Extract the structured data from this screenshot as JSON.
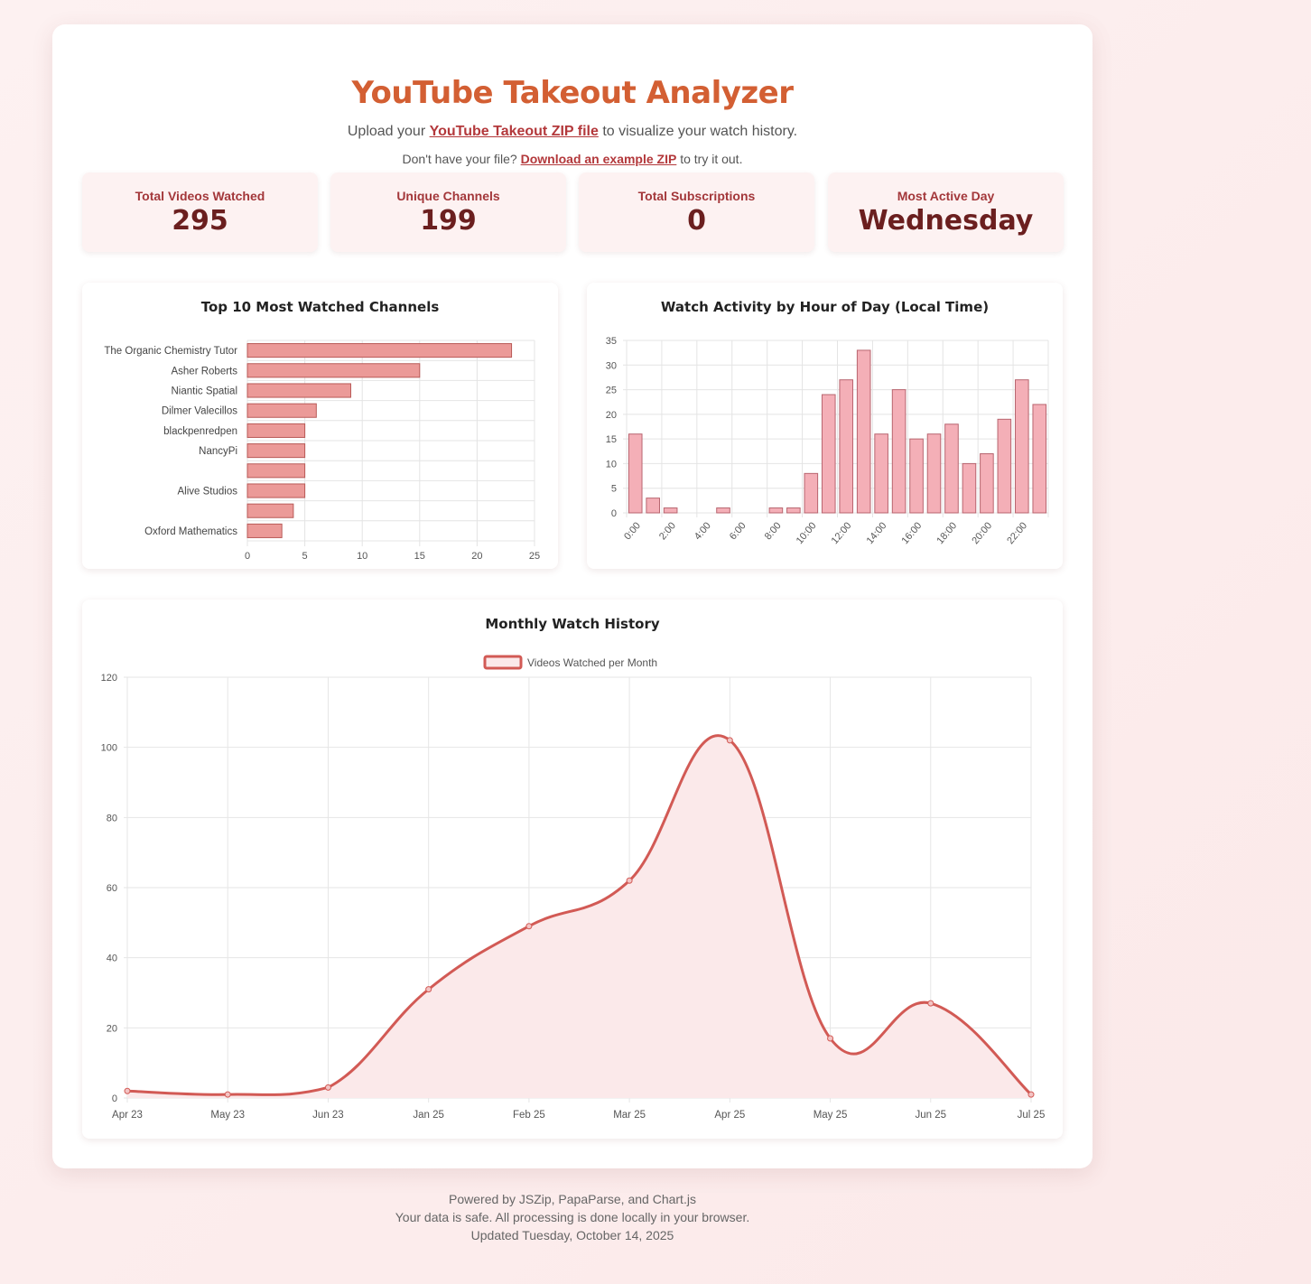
{
  "header": {
    "title": "YouTube Takeout Analyzer",
    "subtitle_pre": "Upload your ",
    "subtitle_link": "YouTube Takeout ZIP file",
    "subtitle_post": " to visualize your watch history.",
    "example_pre": "Don't have your file? ",
    "example_link": "Download an example ZIP",
    "example_post": " to try it out."
  },
  "stats": [
    {
      "label": "Total Videos Watched",
      "value": "295"
    },
    {
      "label": "Unique Channels",
      "value": "199"
    },
    {
      "label": "Total Subscriptions",
      "value": "0"
    },
    {
      "label": "Most Active Day",
      "value": "Wednesday"
    }
  ],
  "colors": {
    "title": "#d35f33",
    "accent": "#b3383b",
    "bar_fill": "#eb9a98",
    "bar_stroke": "#b85a57",
    "hour_fill": "#f4afb7",
    "hour_stroke": "#b8656f",
    "line": "#d25a55",
    "line_fill": "#fbe9ea"
  },
  "chart_data": [
    {
      "type": "bar",
      "orientation": "horizontal",
      "title": "Top 10 Most Watched Channels",
      "categories": [
        "The Organic Chemistry Tutor",
        "Asher Roberts",
        "Niantic Spatial",
        "Dilmer Valecillos",
        "blackpenredpen",
        "NancyPi",
        "",
        "Alive Studios",
        "",
        "Oxford Mathematics"
      ],
      "values": [
        23,
        15,
        9,
        6,
        5,
        5,
        5,
        5,
        4,
        3
      ],
      "xlim": [
        0,
        25
      ],
      "xticks": [
        0,
        5,
        10,
        15,
        20,
        25
      ],
      "grid": true
    },
    {
      "type": "bar",
      "title": "Watch Activity by Hour of Day (Local Time)",
      "categories": [
        "0:00",
        "1:00",
        "2:00",
        "3:00",
        "4:00",
        "5:00",
        "6:00",
        "7:00",
        "8:00",
        "9:00",
        "10:00",
        "11:00",
        "12:00",
        "13:00",
        "14:00",
        "15:00",
        "16:00",
        "17:00",
        "18:00",
        "19:00",
        "20:00",
        "21:00",
        "22:00",
        "23:00"
      ],
      "tick_labels": [
        "0:00",
        "2:00",
        "4:00",
        "6:00",
        "8:00",
        "10:00",
        "12:00",
        "14:00",
        "16:00",
        "18:00",
        "20:00",
        "22:00"
      ],
      "values": [
        16,
        3,
        1,
        0,
        0,
        1,
        0,
        0,
        1,
        1,
        8,
        24,
        27,
        33,
        16,
        25,
        15,
        16,
        18,
        10,
        12,
        19,
        27,
        22
      ],
      "ylim": [
        0,
        35
      ],
      "yticks": [
        0,
        5,
        10,
        15,
        20,
        25,
        30,
        35
      ],
      "grid": true
    },
    {
      "type": "area",
      "title": "Monthly Watch History",
      "legend": "top",
      "series": [
        {
          "name": "Videos Watched per Month",
          "values": [
            2,
            1,
            3,
            31,
            49,
            62,
            102,
            17,
            27,
            1
          ]
        }
      ],
      "categories": [
        "Apr 23",
        "May 23",
        "Jun 23",
        "Jan 25",
        "Feb 25",
        "Mar 25",
        "Apr 25",
        "May 25",
        "Jun 25",
        "Jul 25"
      ],
      "ylim": [
        0,
        120
      ],
      "yticks": [
        0,
        20,
        40,
        60,
        80,
        100,
        120
      ],
      "grid": true
    }
  ],
  "footer": {
    "line1": "Powered by JSZip, PapaParse, and Chart.js",
    "line2": "Your data is safe. All processing is done locally in your browser.",
    "line3": "Updated Tuesday, October 14, 2025"
  }
}
